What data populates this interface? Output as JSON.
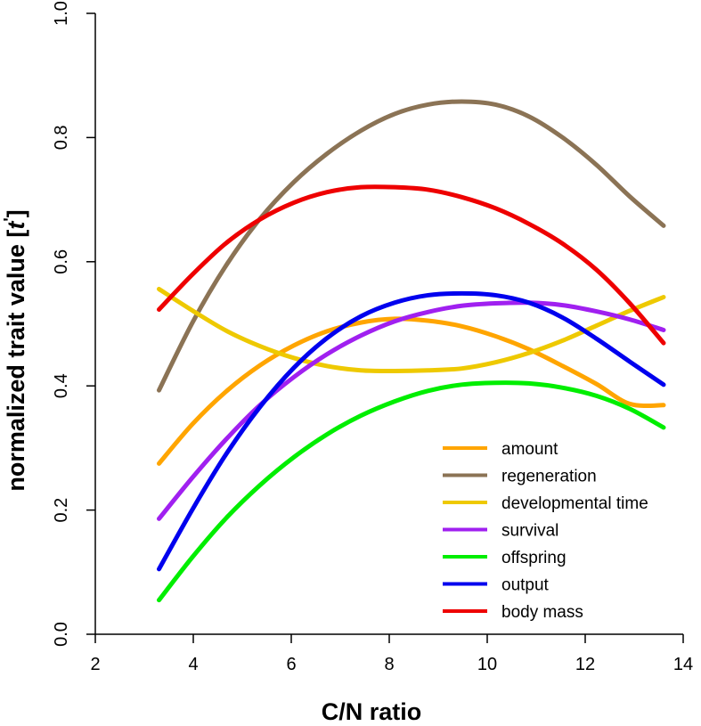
{
  "chart_data": {
    "type": "line",
    "title": "",
    "xlabel": "C/N ratio",
    "ylabel": {
      "before": "normalized trait value [",
      "italic": "t",
      "superscript": "'",
      "after": "]"
    },
    "xlim": [
      2,
      14
    ],
    "ylim": [
      0,
      1
    ],
    "x_ticks": [
      "2",
      "4",
      "6",
      "8",
      "10",
      "12",
      "14"
    ],
    "y_ticks": [
      "0.0",
      "0.2",
      "0.4",
      "0.6",
      "0.8",
      "1.0"
    ],
    "legend_position": "bottom-right",
    "x": [
      3.3,
      3.99,
      4.67,
      5.36,
      6.05,
      6.73,
      7.42,
      8.11,
      8.79,
      9.48,
      10.17,
      10.85,
      11.54,
      12.23,
      12.91,
      13.6
    ],
    "series": [
      {
        "name": "amount",
        "color": "#FFA500",
        "values": [
          0.275,
          0.339,
          0.391,
          0.433,
          0.465,
          0.488,
          0.502,
          0.508,
          0.505,
          0.496,
          0.48,
          0.459,
          0.432,
          0.403,
          0.371,
          0.369
        ]
      },
      {
        "name": "regeneration",
        "color": "#8B7355",
        "values": [
          0.393,
          0.503,
          0.594,
          0.669,
          0.728,
          0.774,
          0.811,
          0.838,
          0.853,
          0.858,
          0.853,
          0.834,
          0.8,
          0.756,
          0.705,
          0.658
        ]
      },
      {
        "name": "developmental time",
        "color": "#EEC900",
        "values": [
          0.556,
          0.521,
          0.489,
          0.464,
          0.445,
          0.432,
          0.425,
          0.424,
          0.425,
          0.428,
          0.438,
          0.453,
          0.473,
          0.497,
          0.521,
          0.543
        ]
      },
      {
        "name": "survival",
        "color": "#A020F0",
        "values": [
          0.186,
          0.253,
          0.314,
          0.369,
          0.414,
          0.451,
          0.481,
          0.504,
          0.519,
          0.529,
          0.533,
          0.534,
          0.53,
          0.52,
          0.507,
          0.49
        ]
      },
      {
        "name": "offspring",
        "color": "#00EE00",
        "values": [
          0.055,
          0.125,
          0.187,
          0.24,
          0.285,
          0.322,
          0.352,
          0.375,
          0.392,
          0.402,
          0.405,
          0.404,
          0.397,
          0.384,
          0.363,
          0.333
        ]
      },
      {
        "name": "output",
        "color": "#0000EE",
        "values": [
          0.105,
          0.202,
          0.29,
          0.366,
          0.429,
          0.477,
          0.512,
          0.534,
          0.546,
          0.549,
          0.546,
          0.534,
          0.51,
          0.476,
          0.439,
          0.402
        ]
      },
      {
        "name": "body mass",
        "color": "#EE0000",
        "values": [
          0.523,
          0.58,
          0.63,
          0.668,
          0.695,
          0.712,
          0.72,
          0.72,
          0.716,
          0.704,
          0.686,
          0.661,
          0.629,
          0.587,
          0.533,
          0.469
        ]
      }
    ]
  }
}
